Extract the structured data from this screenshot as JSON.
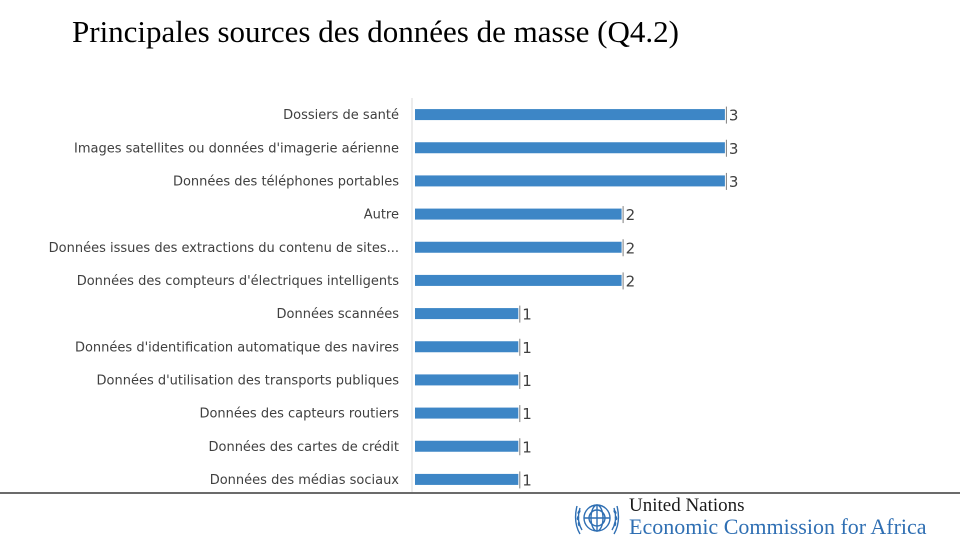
{
  "page": {
    "title": "Principales sources des données de masse (Q4.2)"
  },
  "chart_data": {
    "type": "bar",
    "orientation": "horizontal",
    "categories": [
      "Dossiers de santé",
      "Images satellites ou données d'imagerie aérienne",
      "Données des téléphones portables",
      "Autre",
      "Données issues des extractions du contenu de sites...",
      "Données des compteurs d'électriques intelligents",
      "Données scannées",
      "Données d'identification automatique des navires",
      "Données d'utilisation des transports publiques",
      "Données des capteurs routiers",
      "Données des cartes de crédit",
      "Données des médias sociaux"
    ],
    "values": [
      3,
      3,
      3,
      2,
      2,
      2,
      1,
      1,
      1,
      1,
      1,
      1
    ],
    "title": "Principales sources des données de masse (Q4.2)",
    "xlabel": "",
    "ylabel": "",
    "xlim": [
      0,
      3
    ],
    "grid": false,
    "legend": "none",
    "bar_color": "#3d86c6"
  },
  "footer": {
    "org_name": "United Nations",
    "org_sub": "Economic Commission for Africa",
    "emblem_color": "#2f6fb3"
  }
}
